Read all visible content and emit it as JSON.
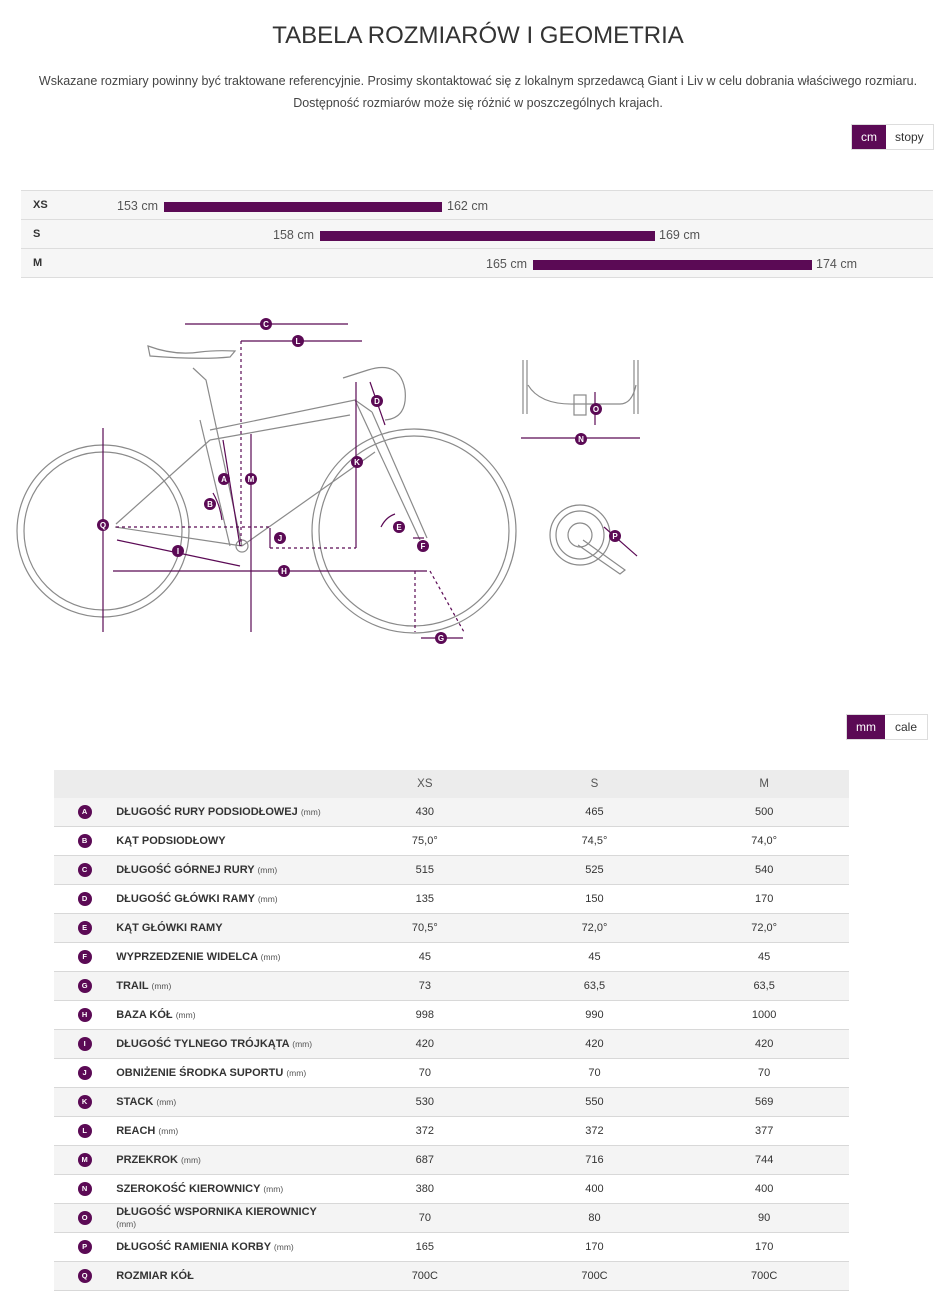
{
  "title": "TABELA ROZMIARÓW I GEOMETRIA",
  "intro": {
    "line1": "Wskazane rozmiary powinny być traktowane referencyjnie. Prosimy skontaktować się z lokalnym sprzedawcą Giant i Liv w celu dobrania właściwego rozmiaru.",
    "line2": "Dostępność rozmiarów może się różnić w poszczególnych krajach."
  },
  "height_units": {
    "active": "cm",
    "other": "stopy"
  },
  "size_ranges": [
    {
      "size": "XS",
      "min": "153 cm",
      "max": "162 cm"
    },
    {
      "size": "S",
      "min": "158 cm",
      "max": "169 cm"
    },
    {
      "size": "M",
      "min": "165 cm",
      "max": "174 cm"
    }
  ],
  "diagram_letters": [
    "A",
    "B",
    "C",
    "D",
    "E",
    "F",
    "G",
    "H",
    "I",
    "J",
    "K",
    "L",
    "M",
    "N",
    "O",
    "P",
    "Q"
  ],
  "geometry_units": {
    "active": "mm",
    "other": "cale"
  },
  "table": {
    "columns": [
      "XS",
      "S",
      "M"
    ],
    "rows": [
      {
        "key": "A",
        "name": "DŁUGOŚĆ RURY PODSIODŁOWEJ",
        "unit": "(mm)",
        "values": [
          "430",
          "465",
          "500"
        ]
      },
      {
        "key": "B",
        "name": "KĄT PODSIODŁOWY",
        "unit": "",
        "values": [
          "75,0°",
          "74,5°",
          "74,0°"
        ]
      },
      {
        "key": "C",
        "name": "DŁUGOŚĆ GÓRNEJ RURY",
        "unit": "(mm)",
        "values": [
          "515",
          "525",
          "540"
        ]
      },
      {
        "key": "D",
        "name": "DŁUGOŚĆ GŁÓWKI RAMY",
        "unit": "(mm)",
        "values": [
          "135",
          "150",
          "170"
        ]
      },
      {
        "key": "E",
        "name": "KĄT GŁÓWKI RAMY",
        "unit": "",
        "values": [
          "70,5°",
          "72,0°",
          "72,0°"
        ]
      },
      {
        "key": "F",
        "name": "WYPRZEDZENIE WIDELCA",
        "unit": "(mm)",
        "values": [
          "45",
          "45",
          "45"
        ]
      },
      {
        "key": "G",
        "name": "TRAIL",
        "unit": "(mm)",
        "values": [
          "73",
          "63,5",
          "63,5"
        ]
      },
      {
        "key": "H",
        "name": "BAZA KÓŁ",
        "unit": "(mm)",
        "values": [
          "998",
          "990",
          "1000"
        ]
      },
      {
        "key": "I",
        "name": "DŁUGOŚĆ TYLNEGO TRÓJKĄTA",
        "unit": "(mm)",
        "values": [
          "420",
          "420",
          "420"
        ]
      },
      {
        "key": "J",
        "name": "OBNIŻENIE ŚRODKA SUPORTU",
        "unit": "(mm)",
        "values": [
          "70",
          "70",
          "70"
        ]
      },
      {
        "key": "K",
        "name": "STACK",
        "unit": "(mm)",
        "values": [
          "530",
          "550",
          "569"
        ]
      },
      {
        "key": "L",
        "name": "REACH",
        "unit": "(mm)",
        "values": [
          "372",
          "372",
          "377"
        ]
      },
      {
        "key": "M",
        "name": "PRZEKROK",
        "unit": "(mm)",
        "values": [
          "687",
          "716",
          "744"
        ]
      },
      {
        "key": "N",
        "name": "SZEROKOŚĆ KIEROWNICY",
        "unit": "(mm)",
        "values": [
          "380",
          "400",
          "400"
        ]
      },
      {
        "key": "O",
        "name": "DŁUGOŚĆ WSPORNIKA KIEROWNICY",
        "unit": "(mm)",
        "values": [
          "70",
          "80",
          "90"
        ]
      },
      {
        "key": "P",
        "name": "DŁUGOŚĆ RAMIENIA KORBY",
        "unit": "(mm)",
        "values": [
          "165",
          "170",
          "170"
        ]
      },
      {
        "key": "Q",
        "name": "ROZMIAR KÓŁ",
        "unit": "",
        "values": [
          "700C",
          "700C",
          "700C"
        ]
      }
    ]
  },
  "colors": {
    "accent": "#5b0a55",
    "frame_line": "#8a8a8a"
  }
}
